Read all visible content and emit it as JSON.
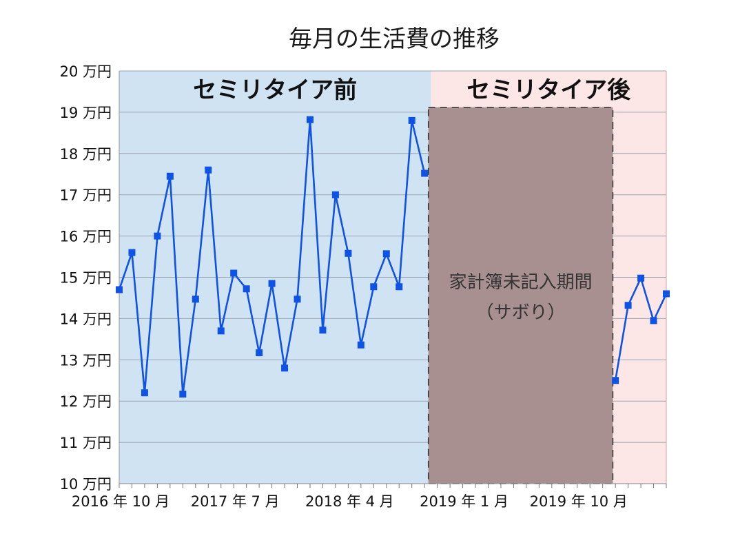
{
  "chart_data": {
    "type": "line",
    "title": "毎月の生活費の推移",
    "ylim": [
      10,
      20
    ],
    "yticks": [
      "10 万円",
      "11 万円",
      "12 万円",
      "13 万円",
      "14 万円",
      "15 万円",
      "16 万円",
      "17 万円",
      "18 万円",
      "19 万円",
      "20 万円"
    ],
    "xlim": [
      0,
      43
    ],
    "xticks": [
      {
        "x": 0,
        "label": "2016 年 10 月"
      },
      {
        "x": 9,
        "label": "2017 年 7 月"
      },
      {
        "x": 18,
        "label": "2018 年 4 月"
      },
      {
        "x": 27,
        "label": "2019 年 1 月"
      },
      {
        "x": 36,
        "label": "2019 年 10 月"
      }
    ],
    "regions": [
      {
        "label": "セミリタイア前",
        "x_start": 0,
        "x_end": 24.5,
        "color": "#cfe3f3"
      },
      {
        "label": "セミリタイア後",
        "x_start": 24.5,
        "x_end": 43,
        "color": "#fde6e6"
      }
    ],
    "gap": {
      "line1": "家計簿未記入期間",
      "line2": "（サボり）",
      "x_start": 24.3,
      "x_end": 38.8,
      "color": "#a89090"
    },
    "series": [
      {
        "color": "#0f52e6",
        "segments": [
          {
            "x": [
              0,
              1,
              2,
              3,
              4,
              5,
              6,
              7,
              8,
              9,
              10,
              11,
              12,
              13,
              14,
              15,
              16,
              17,
              18,
              19,
              20,
              21,
              22,
              23,
              24
            ],
            "y": [
              14.7,
              15.6,
              12.2,
              16.0,
              17.45,
              12.17,
              14.47,
              17.6,
              13.7,
              15.1,
              14.72,
              13.17,
              14.85,
              12.8,
              14.47,
              18.82,
              13.72,
              17.0,
              15.58,
              13.36,
              14.77,
              15.57,
              14.77,
              18.8,
              17.52
            ]
          },
          {
            "x": [
              39,
              40,
              41,
              42,
              43
            ],
            "y": [
              12.5,
              14.32,
              14.98,
              13.95,
              14.6
            ]
          }
        ]
      }
    ]
  }
}
